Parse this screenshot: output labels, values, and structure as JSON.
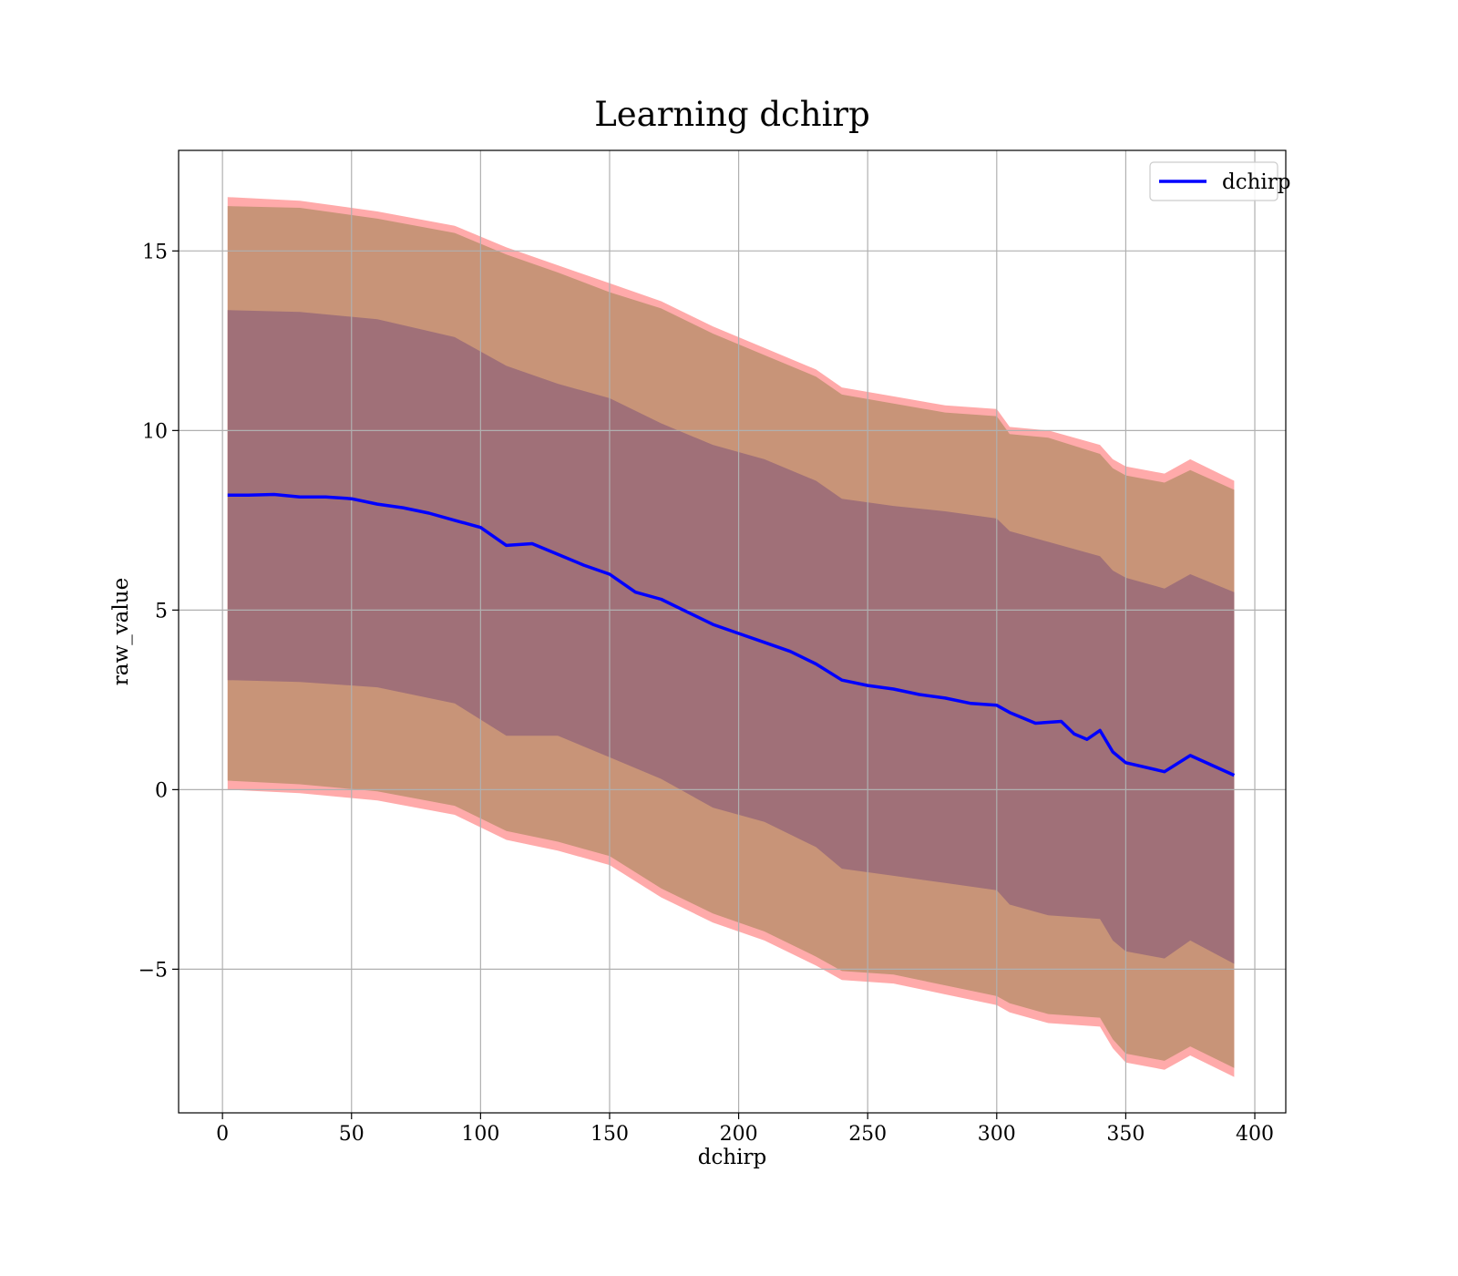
{
  "chart_data": {
    "type": "line",
    "title": "Learning dchirp",
    "xlabel": "dchirp",
    "ylabel": "raw_value",
    "xlim": [
      -17,
      412
    ],
    "ylim": [
      -9,
      17.8
    ],
    "xticks": [
      0,
      50,
      100,
      150,
      200,
      250,
      300,
      350,
      400
    ],
    "yticks": [
      -5,
      0,
      5,
      10,
      15
    ],
    "ytick_labels": [
      "−5",
      "0",
      "5",
      "10",
      "15"
    ],
    "grid": true,
    "legend": {
      "placement": "upper-right",
      "entries": [
        {
          "label": "dchirp",
          "color": "#0000ff"
        }
      ]
    },
    "series": [
      {
        "name": "dchirp",
        "kind": "line",
        "color": "#0000ff",
        "x": [
          2,
          10,
          20,
          30,
          40,
          50,
          60,
          70,
          80,
          90,
          100,
          110,
          120,
          130,
          140,
          150,
          160,
          170,
          180,
          190,
          200,
          210,
          220,
          230,
          240,
          250,
          260,
          270,
          280,
          290,
          300,
          305,
          315,
          325,
          330,
          335,
          340,
          345,
          350,
          365,
          375,
          392
        ],
        "values": [
          8.2,
          8.2,
          8.22,
          8.15,
          8.15,
          8.1,
          7.95,
          7.85,
          7.7,
          7.5,
          7.3,
          6.8,
          6.85,
          6.55,
          6.25,
          6.0,
          5.5,
          5.3,
          4.95,
          4.6,
          4.35,
          4.1,
          3.85,
          3.5,
          3.05,
          2.9,
          2.8,
          2.65,
          2.55,
          2.4,
          2.35,
          2.15,
          1.85,
          1.9,
          1.55,
          1.4,
          1.65,
          1.05,
          0.75,
          0.5,
          0.95,
          0.4
        ]
      }
    ],
    "bands": [
      {
        "description_of_layer": "outer light red band",
        "color": "#ffaaaa",
        "x": [
          2,
          30,
          60,
          90,
          110,
          130,
          150,
          170,
          190,
          210,
          230,
          240,
          260,
          280,
          300,
          305,
          320,
          340,
          345,
          350,
          365,
          375,
          392
        ],
        "upper": [
          16.5,
          16.4,
          16.1,
          15.7,
          15.1,
          14.6,
          14.1,
          13.6,
          12.9,
          12.3,
          11.7,
          11.2,
          10.95,
          10.7,
          10.6,
          10.1,
          10.0,
          9.6,
          9.2,
          9.0,
          8.8,
          9.2,
          8.6
        ],
        "lower": [
          0.0,
          -0.1,
          -0.3,
          -0.7,
          -1.4,
          -1.7,
          -2.1,
          -3.0,
          -3.7,
          -4.2,
          -4.9,
          -5.3,
          -5.4,
          -5.7,
          -6.0,
          -6.2,
          -6.5,
          -6.6,
          -7.2,
          -7.6,
          -7.8,
          -7.4,
          -8.0
        ]
      },
      {
        "description_of_layer": "middle tan band",
        "color": "#c89478",
        "x": [
          2,
          30,
          60,
          90,
          110,
          130,
          150,
          170,
          190,
          210,
          230,
          240,
          260,
          280,
          300,
          305,
          320,
          340,
          345,
          350,
          365,
          375,
          392
        ],
        "upper": [
          16.25,
          16.2,
          15.9,
          15.5,
          14.9,
          14.4,
          13.85,
          13.4,
          12.7,
          12.1,
          11.5,
          11.0,
          10.75,
          10.5,
          10.4,
          9.9,
          9.8,
          9.35,
          8.95,
          8.75,
          8.55,
          8.9,
          8.35
        ],
        "lower": [
          0.25,
          0.15,
          -0.05,
          -0.45,
          -1.15,
          -1.45,
          -1.85,
          -2.75,
          -3.45,
          -3.95,
          -4.65,
          -5.05,
          -5.15,
          -5.45,
          -5.75,
          -5.95,
          -6.25,
          -6.35,
          -6.95,
          -7.35,
          -7.55,
          -7.15,
          -7.75
        ]
      },
      {
        "description_of_layer": "inner mauve band",
        "color": "#a07078",
        "x": [
          2,
          30,
          60,
          90,
          110,
          130,
          150,
          170,
          190,
          210,
          230,
          240,
          260,
          280,
          300,
          305,
          320,
          340,
          345,
          350,
          365,
          375,
          392
        ],
        "upper": [
          13.35,
          13.3,
          13.1,
          12.6,
          11.8,
          11.3,
          10.9,
          10.2,
          9.6,
          9.2,
          8.6,
          8.1,
          7.9,
          7.75,
          7.55,
          7.2,
          6.9,
          6.5,
          6.1,
          5.9,
          5.6,
          6.0,
          5.5
        ],
        "lower": [
          3.05,
          3.0,
          2.85,
          2.4,
          1.5,
          1.5,
          0.9,
          0.3,
          -0.5,
          -0.9,
          -1.6,
          -2.2,
          -2.4,
          -2.6,
          -2.8,
          -3.2,
          -3.5,
          -3.6,
          -4.2,
          -4.5,
          -4.7,
          -4.2,
          -4.85
        ]
      }
    ]
  }
}
